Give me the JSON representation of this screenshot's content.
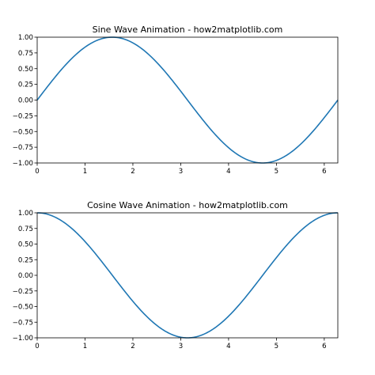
{
  "chart_data": [
    {
      "type": "line",
      "title": "Sine Wave Animation - how2matplotlib.com",
      "xlabel": "",
      "ylabel": "",
      "xlim": [
        0,
        6.2832
      ],
      "ylim": [
        -1.0,
        1.0
      ],
      "grid": false,
      "x_ticks": [
        0,
        1,
        2,
        3,
        4,
        5,
        6
      ],
      "x_tick_labels": [
        "0",
        "1",
        "2",
        "3",
        "4",
        "5",
        "6"
      ],
      "y_ticks": [
        1.0,
        0.75,
        0.5,
        0.25,
        0.0,
        -0.25,
        -0.5,
        -0.75,
        -1.0
      ],
      "y_tick_labels": [
        "1.00",
        "0.75",
        "0.50",
        "0.25",
        "0.00",
        "−0.25",
        "−0.50",
        "−0.75",
        "−1.00"
      ],
      "series": [
        {
          "function": "sin",
          "color": "#1f77b4",
          "x": [
            0,
            0.3307,
            0.6614,
            0.9921,
            1.3228,
            1.6535,
            1.9842,
            2.3149,
            2.6456,
            2.9762,
            3.3069,
            3.6376,
            3.9683,
            4.299,
            4.6297,
            4.9604,
            5.2911,
            5.6218,
            5.9525,
            6.2832
          ],
          "values": [
            0.0,
            0.3247,
            0.6142,
            0.8372,
            0.9694,
            0.9966,
            0.9158,
            0.7357,
            0.4759,
            0.1646,
            -0.1646,
            -0.4759,
            -0.7357,
            -0.9158,
            -0.9966,
            -0.9694,
            -0.8372,
            -0.6142,
            -0.3247,
            0.0
          ]
        }
      ]
    },
    {
      "type": "line",
      "title": "Cosine Wave Animation - how2matplotlib.com",
      "xlabel": "",
      "ylabel": "",
      "xlim": [
        0,
        6.2832
      ],
      "ylim": [
        -1.0,
        1.0
      ],
      "grid": false,
      "x_ticks": [
        0,
        1,
        2,
        3,
        4,
        5,
        6
      ],
      "x_tick_labels": [
        "0",
        "1",
        "2",
        "3",
        "4",
        "5",
        "6"
      ],
      "y_ticks": [
        1.0,
        0.75,
        0.5,
        0.25,
        0.0,
        -0.25,
        -0.5,
        -0.75,
        -1.0
      ],
      "y_tick_labels": [
        "1.00",
        "0.75",
        "0.50",
        "0.25",
        "0.00",
        "−0.25",
        "−0.50",
        "−0.75",
        "−1.00"
      ],
      "series": [
        {
          "function": "cos",
          "color": "#1f77b4",
          "x": [
            0,
            0.3307,
            0.6614,
            0.9921,
            1.3228,
            1.6535,
            1.9842,
            2.3149,
            2.6456,
            2.9762,
            3.3069,
            3.6376,
            3.9683,
            4.299,
            4.6297,
            4.9604,
            5.2911,
            5.6218,
            5.9525,
            6.2832
          ],
          "values": [
            1.0,
            0.9458,
            0.7891,
            0.5469,
            0.2455,
            -0.0826,
            -0.4017,
            -0.6773,
            -0.8795,
            -0.9864,
            -0.9864,
            -0.8795,
            -0.6773,
            -0.4017,
            -0.0826,
            0.2455,
            0.5469,
            0.7891,
            0.9458,
            1.0
          ]
        }
      ]
    }
  ]
}
